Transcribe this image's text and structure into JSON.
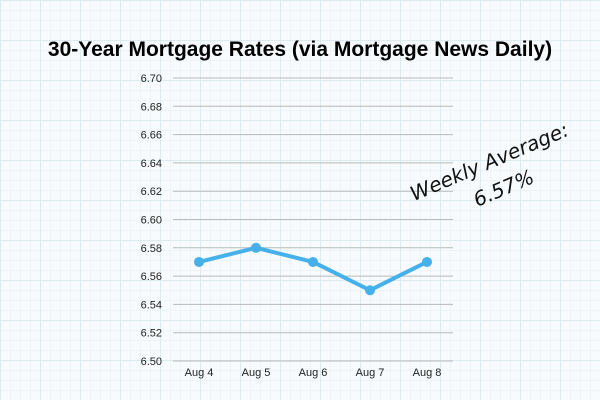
{
  "chart_data": {
    "type": "line",
    "title": "30-Year Mortgage Rates (via Mortgage News Daily)",
    "xlabel": "",
    "ylabel": "",
    "categories": [
      "Aug 4",
      "Aug 5",
      "Aug 6",
      "Aug 7",
      "Aug 8"
    ],
    "values": [
      6.57,
      6.58,
      6.57,
      6.55,
      6.57
    ],
    "ylim": [
      6.5,
      6.7
    ],
    "yticks": [
      "6.70",
      "6.68",
      "6.66",
      "6.64",
      "6.62",
      "6.60",
      "6.58",
      "6.56",
      "6.54",
      "6.52",
      "6.50"
    ],
    "grid": true,
    "line_color": "#45b0ea",
    "annotation": {
      "line1": "Weekly Average:",
      "line2": "6.57%"
    }
  }
}
